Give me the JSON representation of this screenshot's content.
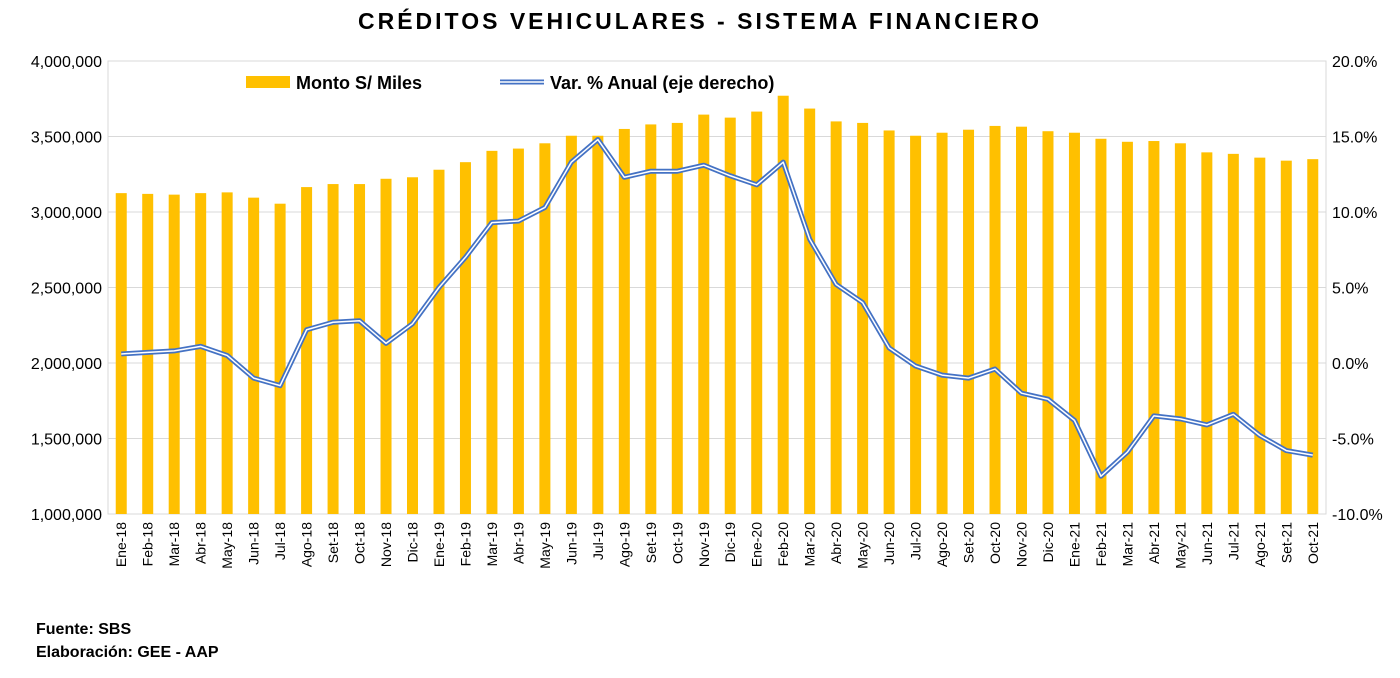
{
  "chart_data": {
    "type": "bar",
    "title": "CRÉDITOS VEHICULARES - SISTEMA FINANCIERO",
    "categories": [
      "Ene-18",
      "Feb-18",
      "Mar-18",
      "Abr-18",
      "May-18",
      "Jun-18",
      "Jul-18",
      "Ago-18",
      "Set-18",
      "Oct-18",
      "Nov-18",
      "Dic-18",
      "Ene-19",
      "Feb-19",
      "Mar-19",
      "Abr-19",
      "May-19",
      "Jun-19",
      "Jul-19",
      "Ago-19",
      "Set-19",
      "Oct-19",
      "Nov-19",
      "Dic-19",
      "Ene-20",
      "Feb-20",
      "Mar-20",
      "Abr-20",
      "May-20",
      "Jun-20",
      "Jul-20",
      "Ago-20",
      "Set-20",
      "Oct-20",
      "Nov-20",
      "Dic-20",
      "Ene-21",
      "Feb-21",
      "Mar-21",
      "Abr-21",
      "May-21",
      "Jun-21",
      "Jul-21",
      "Ago-21",
      "Set-21",
      "Oct-21"
    ],
    "series": [
      {
        "name": "Monto S/ Miles",
        "type": "bar",
        "axis": "left",
        "color": "#FFC000",
        "values": [
          3125000,
          3120000,
          3115000,
          3125000,
          3130000,
          3095000,
          3055000,
          3165000,
          3185000,
          3185000,
          3220000,
          3230000,
          3280000,
          3330000,
          3405000,
          3420000,
          3455000,
          3505000,
          3505000,
          3550000,
          3580000,
          3590000,
          3645000,
          3625000,
          3665000,
          3770000,
          3685000,
          3600000,
          3590000,
          3540000,
          3505000,
          3525000,
          3545000,
          3570000,
          3565000,
          3535000,
          3525000,
          3485000,
          3465000,
          3470000,
          3455000,
          3395000,
          3385000,
          3360000,
          3340000,
          3350000
        ]
      },
      {
        "name": "Var. % Anual (eje derecho)",
        "type": "line",
        "axis": "right",
        "color": "#4472C4",
        "values": [
          0.6,
          0.7,
          0.8,
          1.1,
          0.5,
          -1.0,
          -1.5,
          2.2,
          2.7,
          2.8,
          1.3,
          2.6,
          5.0,
          7.0,
          9.3,
          9.4,
          10.3,
          13.3,
          14.8,
          12.3,
          12.7,
          12.7,
          13.1,
          12.4,
          11.8,
          13.3,
          8.2,
          5.2,
          4.0,
          1.0,
          -0.2,
          -0.8,
          -1.0,
          -0.4,
          -2.0,
          -2.4,
          -3.8,
          -7.5,
          -5.9,
          -3.5,
          -3.7,
          -4.1,
          -3.4,
          -4.8,
          -5.8,
          -6.1
        ]
      }
    ],
    "y_left": {
      "min": 1000000,
      "max": 4000000,
      "step": 500000,
      "tick_labels": [
        "1,000,000",
        "1,500,000",
        "2,000,000",
        "2,500,000",
        "3,000,000",
        "3,500,000",
        "4,000,000"
      ]
    },
    "y_right": {
      "min": -10,
      "max": 20,
      "step": 5,
      "tick_labels": [
        "-10.0%",
        "-5.0%",
        "0.0%",
        "5.0%",
        "10.0%",
        "15.0%",
        "20.0%"
      ]
    },
    "grid": true,
    "legend": "top-left"
  },
  "footer": {
    "source": "Fuente: SBS",
    "credit": "Elaboración: GEE - AAP"
  }
}
